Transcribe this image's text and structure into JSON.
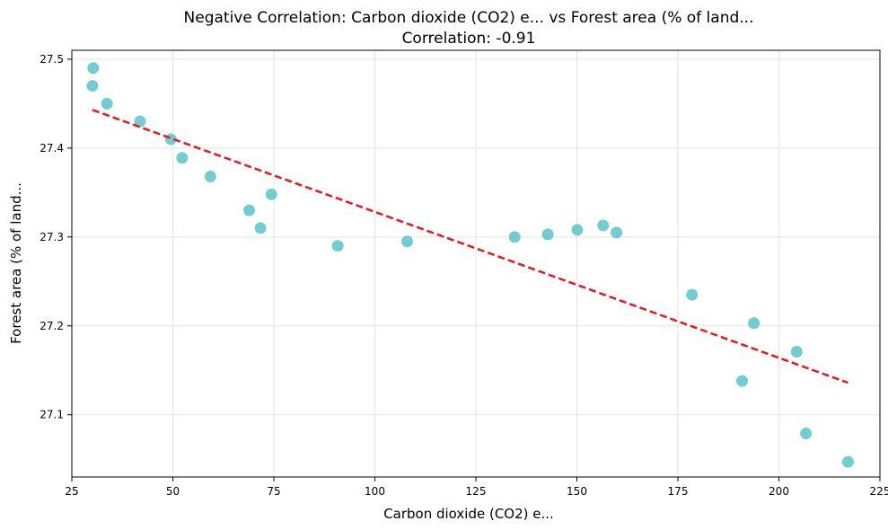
{
  "chart_data": {
    "type": "scatter",
    "title": "Negative Correlation: Carbon dioxide (CO2) e... vs Forest area (% of land...",
    "subtitle": "Correlation: -0.91",
    "xlabel": "Carbon dioxide (CO2) e...",
    "ylabel": "Forest area (% of land...",
    "xlim": [
      25,
      225
    ],
    "ylim": [
      27.03,
      27.51
    ],
    "xticks": [
      25,
      50,
      75,
      100,
      125,
      150,
      175,
      200,
      225
    ],
    "yticks": [
      27.1,
      27.2,
      27.3,
      27.4,
      27.5
    ],
    "grid": true,
    "point_color": "#4fbfc6",
    "trend_color": "#e8191c",
    "series": [
      {
        "points": [
          {
            "x": 30.3,
            "y": 27.49
          },
          {
            "x": 30.1,
            "y": 27.47
          },
          {
            "x": 33.7,
            "y": 27.45
          },
          {
            "x": 41.9,
            "y": 27.43
          },
          {
            "x": 49.5,
            "y": 27.41
          },
          {
            "x": 52.3,
            "y": 27.389
          },
          {
            "x": 59.3,
            "y": 27.368
          },
          {
            "x": 68.9,
            "y": 27.33
          },
          {
            "x": 74.4,
            "y": 27.348
          },
          {
            "x": 71.7,
            "y": 27.31
          },
          {
            "x": 90.8,
            "y": 27.29
          },
          {
            "x": 108.0,
            "y": 27.295
          },
          {
            "x": 134.6,
            "y": 27.3
          },
          {
            "x": 142.8,
            "y": 27.303
          },
          {
            "x": 150.1,
            "y": 27.308
          },
          {
            "x": 156.5,
            "y": 27.313
          },
          {
            "x": 159.8,
            "y": 27.305
          },
          {
            "x": 178.5,
            "y": 27.235
          },
          {
            "x": 193.8,
            "y": 27.203
          },
          {
            "x": 204.4,
            "y": 27.171
          },
          {
            "x": 190.9,
            "y": 27.138
          },
          {
            "x": 206.7,
            "y": 27.079
          },
          {
            "x": 217.1,
            "y": 27.047
          }
        ]
      }
    ],
    "trendline": {
      "x": [
        30.1,
        217.1
      ],
      "y": [
        27.443,
        27.136
      ]
    }
  }
}
